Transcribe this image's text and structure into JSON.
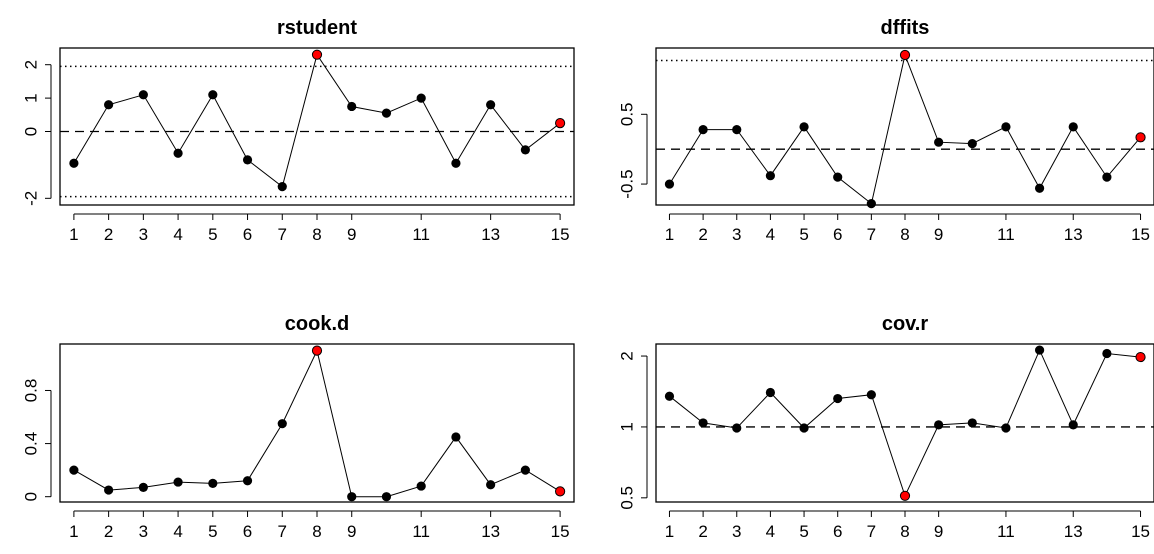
{
  "chart_data": [
    {
      "type": "line",
      "title": "rstudent",
      "x": [
        1,
        2,
        3,
        4,
        5,
        6,
        7,
        8,
        9,
        10,
        11,
        12,
        13,
        14,
        15
      ],
      "values": [
        -0.95,
        0.8,
        1.1,
        -0.65,
        1.1,
        -0.85,
        -1.65,
        2.3,
        0.75,
        0.55,
        1.0,
        -0.95,
        0.8,
        -0.55,
        0.25
      ],
      "point_colors": [
        "#000000",
        "#000000",
        "#000000",
        "#000000",
        "#000000",
        "#000000",
        "#000000",
        "#ff0000",
        "#000000",
        "#000000",
        "#000000",
        "#000000",
        "#000000",
        "#000000",
        "#ff0000"
      ],
      "xlim": [
        0.6,
        15.4
      ],
      "ylim": [
        -2.2,
        2.5
      ],
      "xticks": [
        1,
        2,
        3,
        4,
        5,
        6,
        7,
        8,
        9,
        11,
        13,
        15
      ],
      "yticks": [
        -2,
        0,
        1,
        2
      ],
      "ref_lines": [
        {
          "y": 0,
          "style": "dashed"
        },
        {
          "y": 1.95,
          "style": "dotted"
        },
        {
          "y": -1.95,
          "style": "dotted"
        }
      ]
    },
    {
      "type": "line",
      "title": "dffits",
      "x": [
        1,
        2,
        3,
        4,
        5,
        6,
        7,
        8,
        9,
        10,
        11,
        12,
        13,
        14,
        15
      ],
      "values": [
        -0.5,
        0.28,
        0.28,
        -0.38,
        0.32,
        -0.4,
        -0.78,
        1.35,
        0.1,
        0.08,
        0.32,
        -0.56,
        0.32,
        -0.4,
        0.17
      ],
      "point_colors": [
        "#000000",
        "#000000",
        "#000000",
        "#000000",
        "#000000",
        "#000000",
        "#000000",
        "#ff0000",
        "#000000",
        "#000000",
        "#000000",
        "#000000",
        "#000000",
        "#000000",
        "#ff0000"
      ],
      "xlim": [
        0.6,
        15.4
      ],
      "ylim": [
        -0.8,
        1.45
      ],
      "xticks": [
        1,
        2,
        3,
        4,
        5,
        6,
        7,
        8,
        9,
        11,
        13,
        15
      ],
      "yticks": [
        -0.5,
        0.5
      ],
      "ref_lines": [
        {
          "y": 0,
          "style": "dashed"
        },
        {
          "y": 1.27,
          "style": "dotted"
        }
      ]
    },
    {
      "type": "line",
      "title": "cook.d",
      "x": [
        1,
        2,
        3,
        4,
        5,
        6,
        7,
        8,
        9,
        10,
        11,
        12,
        13,
        14,
        15
      ],
      "values": [
        0.2,
        0.05,
        0.07,
        0.11,
        0.1,
        0.12,
        0.55,
        1.1,
        0.0,
        0.0,
        0.08,
        0.45,
        0.09,
        0.2,
        0.04
      ],
      "point_colors": [
        "#000000",
        "#000000",
        "#000000",
        "#000000",
        "#000000",
        "#000000",
        "#000000",
        "#ff0000",
        "#000000",
        "#000000",
        "#000000",
        "#000000",
        "#000000",
        "#000000",
        "#ff0000"
      ],
      "xlim": [
        0.6,
        15.4
      ],
      "ylim": [
        -0.04,
        1.15
      ],
      "xticks": [
        1,
        2,
        3,
        4,
        5,
        6,
        7,
        8,
        9,
        11,
        13,
        15
      ],
      "yticks": [
        0.0,
        0.4,
        0.8
      ],
      "ref_lines": []
    },
    {
      "type": "line",
      "title": "cov.r",
      "x": [
        1,
        2,
        3,
        4,
        5,
        6,
        7,
        8,
        9,
        10,
        11,
        12,
        13,
        14,
        15
      ],
      "values": [
        1.35,
        1.04,
        0.99,
        1.4,
        0.99,
        1.32,
        1.37,
        0.51,
        1.02,
        1.04,
        0.99,
        2.12,
        1.02,
        2.05,
        1.98
      ],
      "point_colors": [
        "#000000",
        "#000000",
        "#000000",
        "#000000",
        "#000000",
        "#000000",
        "#000000",
        "#ff0000",
        "#000000",
        "#000000",
        "#000000",
        "#000000",
        "#000000",
        "#000000",
        "#ff0000"
      ],
      "ylog": true,
      "xlim": [
        0.6,
        15.4
      ],
      "ylim": [
        0.48,
        2.25
      ],
      "xticks": [
        1,
        2,
        3,
        4,
        5,
        6,
        7,
        8,
        9,
        11,
        13,
        15
      ],
      "yticks": [
        0.5,
        1.0,
        2.0
      ],
      "ref_lines": [
        {
          "y": 1.0,
          "style": "dashed"
        }
      ]
    }
  ]
}
